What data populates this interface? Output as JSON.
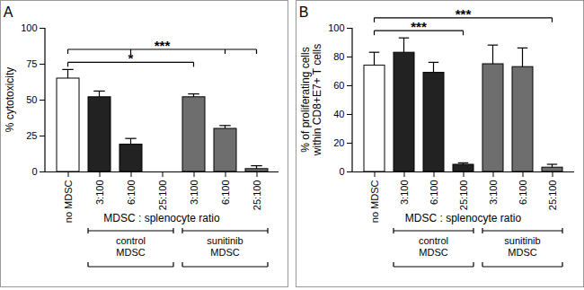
{
  "chart_data": [
    {
      "type": "bar",
      "title": "A",
      "y_label": "% cytotoxicity",
      "x_label": "MDSC : splenocyte ratio",
      "categories": [
        "no MDSC",
        "3:100",
        "6:100",
        "25:100",
        "3:100",
        "6:100",
        "25:100"
      ],
      "values": [
        65,
        52,
        19,
        0,
        52,
        30,
        2
      ],
      "errors": [
        6,
        4,
        4,
        0,
        2,
        2,
        2
      ],
      "colors": [
        "#ffffff",
        "#222222",
        "#222222",
        "#222222",
        "#6e6e6e",
        "#6e6e6e",
        "#6e6e6e"
      ],
      "ylim": [
        0,
        100
      ],
      "yticks": [
        0,
        25,
        50,
        75,
        100
      ],
      "groups": [
        {
          "label": "control\nMDSC",
          "categories": [
            1,
            2,
            3
          ]
        },
        {
          "label": "sunitinib\nMDSC",
          "categories": [
            4,
            5,
            6
          ]
        }
      ],
      "annotations": [
        {
          "label": "*",
          "categories": [
            0,
            4
          ]
        },
        {
          "label": "***",
          "categories": [
            0,
            2,
            5,
            6
          ]
        }
      ]
    },
    {
      "type": "bar",
      "title": "B",
      "y_label": "% of proliferating cells\nwithin CD8+E7+ T cells",
      "x_label": "MDSC : splenocyte ratio",
      "categories": [
        "no MDSC",
        "3:100",
        "6:100",
        "25:100",
        "3:100",
        "6:100",
        "25:100"
      ],
      "values": [
        74,
        83,
        69,
        5,
        75,
        73,
        3
      ],
      "errors": [
        9,
        10,
        7,
        1,
        13,
        13,
        2
      ],
      "colors": [
        "#ffffff",
        "#222222",
        "#222222",
        "#222222",
        "#6e6e6e",
        "#6e6e6e",
        "#6e6e6e"
      ],
      "ylim": [
        0,
        100
      ],
      "yticks": [
        0,
        20,
        40,
        60,
        80,
        100
      ],
      "groups": [
        {
          "label": "control\nMDSC",
          "categories": [
            1,
            2,
            3
          ]
        },
        {
          "label": "sunitinib\nMDSC",
          "categories": [
            4,
            5,
            6
          ]
        }
      ],
      "annotations": [
        {
          "label": "***",
          "categories": [
            0,
            3
          ]
        },
        {
          "label": "***",
          "categories": [
            0,
            6
          ]
        }
      ]
    }
  ]
}
